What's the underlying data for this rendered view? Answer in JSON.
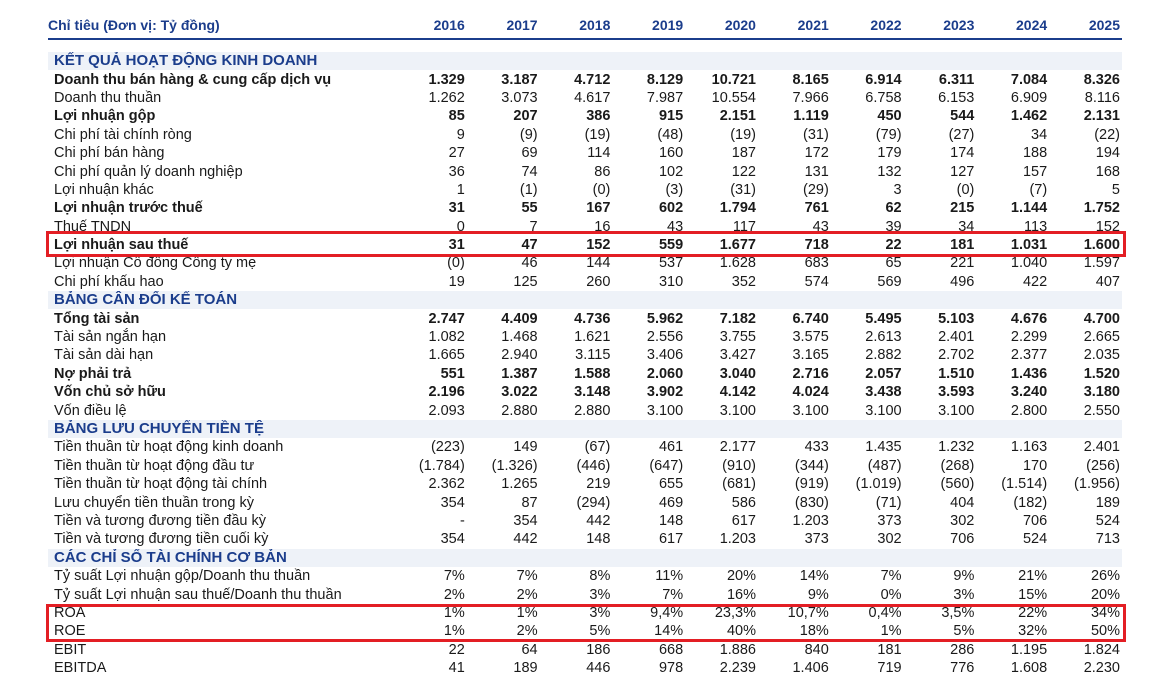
{
  "header": {
    "label": "Chỉ tiêu (Đơn vị: Tỷ đồng)",
    "years": [
      "2016",
      "2017",
      "2018",
      "2019",
      "2020",
      "2021",
      "2022",
      "2023",
      "2024",
      "2025"
    ]
  },
  "rows": [
    {
      "type": "section",
      "label": "KẾT QUẢ HOẠT ĐỘNG KINH DOANH"
    },
    {
      "type": "bold",
      "label": "Doanh thu bán hàng & cung cấp dịch vụ",
      "values": [
        "1.329",
        "3.187",
        "4.712",
        "8.129",
        "10.721",
        "8.165",
        "6.914",
        "6.311",
        "7.084",
        "8.326"
      ]
    },
    {
      "type": "normal",
      "label": "Doanh thu thuần",
      "values": [
        "1.262",
        "3.073",
        "4.617",
        "7.987",
        "10.554",
        "7.966",
        "6.758",
        "6.153",
        "6.909",
        "8.116"
      ]
    },
    {
      "type": "bold",
      "label": "Lợi nhuận gộp",
      "values": [
        "85",
        "207",
        "386",
        "915",
        "2.151",
        "1.119",
        "450",
        "544",
        "1.462",
        "2.131"
      ]
    },
    {
      "type": "normal",
      "label": "Chi phí tài chính ròng",
      "values": [
        "9",
        "(9)",
        "(19)",
        "(48)",
        "(19)",
        "(31)",
        "(79)",
        "(27)",
        "34",
        "(22)"
      ]
    },
    {
      "type": "normal",
      "label": "Chi phí bán hàng",
      "values": [
        "27",
        "69",
        "114",
        "160",
        "187",
        "172",
        "179",
        "174",
        "188",
        "194"
      ]
    },
    {
      "type": "normal",
      "label": "Chi phí quản lý doanh nghiệp",
      "values": [
        "36",
        "74",
        "86",
        "102",
        "122",
        "131",
        "132",
        "127",
        "157",
        "168"
      ]
    },
    {
      "type": "normal",
      "label": "Lợi nhuận khác",
      "values": [
        "1",
        "(1)",
        "(0)",
        "(3)",
        "(31)",
        "(29)",
        "3",
        "(0)",
        "(7)",
        "5"
      ]
    },
    {
      "type": "bold",
      "label": "Lợi nhuận trước thuế",
      "values": [
        "31",
        "55",
        "167",
        "602",
        "1.794",
        "761",
        "62",
        "215",
        "1.144",
        "1.752"
      ]
    },
    {
      "type": "normal",
      "label": "Thuế TNDN",
      "values": [
        "0",
        "7",
        "16",
        "43",
        "117",
        "43",
        "39",
        "34",
        "113",
        "152"
      ]
    },
    {
      "type": "bold",
      "label": "Lợi nhuận sau thuế",
      "values": [
        "31",
        "47",
        "152",
        "559",
        "1.677",
        "718",
        "22",
        "181",
        "1.031",
        "1.600"
      ]
    },
    {
      "type": "normal",
      "label": "Lợi nhuận Cổ đông Công ty mẹ",
      "values": [
        "(0)",
        "46",
        "144",
        "537",
        "1.628",
        "683",
        "65",
        "221",
        "1.040",
        "1.597"
      ]
    },
    {
      "type": "normal",
      "label": "Chi phí khấu hao",
      "values": [
        "19",
        "125",
        "260",
        "310",
        "352",
        "574",
        "569",
        "496",
        "422",
        "407"
      ]
    },
    {
      "type": "section",
      "label": "BẢNG CÂN ĐỐI KẾ TOÁN"
    },
    {
      "type": "bold",
      "label": "Tổng tài sản",
      "values": [
        "2.747",
        "4.409",
        "4.736",
        "5.962",
        "7.182",
        "6.740",
        "5.495",
        "5.103",
        "4.676",
        "4.700"
      ]
    },
    {
      "type": "normal",
      "label": "Tài sản ngắn hạn",
      "values": [
        "1.082",
        "1.468",
        "1.621",
        "2.556",
        "3.755",
        "3.575",
        "2.613",
        "2.401",
        "2.299",
        "2.665"
      ]
    },
    {
      "type": "normal",
      "label": "Tài sản dài hạn",
      "values": [
        "1.665",
        "2.940",
        "3.115",
        "3.406",
        "3.427",
        "3.165",
        "2.882",
        "2.702",
        "2.377",
        "2.035"
      ]
    },
    {
      "type": "bold",
      "label": "Nợ phải trả",
      "values": [
        "551",
        "1.387",
        "1.588",
        "2.060",
        "3.040",
        "2.716",
        "2.057",
        "1.510",
        "1.436",
        "1.520"
      ]
    },
    {
      "type": "bold",
      "label": "Vốn chủ sở hữu",
      "values": [
        "2.196",
        "3.022",
        "3.148",
        "3.902",
        "4.142",
        "4.024",
        "3.438",
        "3.593",
        "3.240",
        "3.180"
      ]
    },
    {
      "type": "normal",
      "label": "Vốn điều lệ",
      "values": [
        "2.093",
        "2.880",
        "2.880",
        "3.100",
        "3.100",
        "3.100",
        "3.100",
        "3.100",
        "2.800",
        "2.550"
      ]
    },
    {
      "type": "section",
      "label": "BẢNG LƯU CHUYỂN TIỀN TỆ"
    },
    {
      "type": "normal",
      "label": "Tiền thuần từ hoạt động kinh doanh",
      "values": [
        "(223)",
        "149",
        "(67)",
        "461",
        "2.177",
        "433",
        "1.435",
        "1.232",
        "1.163",
        "2.401"
      ]
    },
    {
      "type": "normal",
      "label": "Tiền thuần từ hoạt động đầu tư",
      "values": [
        "(1.784)",
        "(1.326)",
        "(446)",
        "(647)",
        "(910)",
        "(344)",
        "(487)",
        "(268)",
        "170",
        "(256)"
      ]
    },
    {
      "type": "normal",
      "label": "Tiền thuần từ hoạt động tài chính",
      "values": [
        "2.362",
        "1.265",
        "219",
        "655",
        "(681)",
        "(919)",
        "(1.019)",
        "(560)",
        "(1.514)",
        "(1.956)"
      ]
    },
    {
      "type": "normal",
      "label": "Lưu chuyển tiền thuần trong kỳ",
      "values": [
        "354",
        "87",
        "(294)",
        "469",
        "586",
        "(830)",
        "(71)",
        "404",
        "(182)",
        "189"
      ]
    },
    {
      "type": "normal",
      "label": "Tiền và tương đương tiền đầu kỳ",
      "values": [
        "-",
        "354",
        "442",
        "148",
        "617",
        "1.203",
        "373",
        "302",
        "706",
        "524"
      ]
    },
    {
      "type": "normal",
      "label": "Tiền và tương đương tiền cuối kỳ",
      "values": [
        "354",
        "442",
        "148",
        "617",
        "1.203",
        "373",
        "302",
        "706",
        "524",
        "713"
      ]
    },
    {
      "type": "section",
      "label": "CÁC CHỈ SỐ TÀI CHÍNH CƠ BẢN"
    },
    {
      "type": "normal",
      "label": "Tỷ suất Lợi nhuận gộp/Doanh thu thuần",
      "values": [
        "7%",
        "7%",
        "8%",
        "11%",
        "20%",
        "14%",
        "7%",
        "9%",
        "21%",
        "26%"
      ]
    },
    {
      "type": "normal",
      "label": "Tỷ suất Lợi nhuận sau thuế/Doanh thu thuần",
      "values": [
        "2%",
        "2%",
        "3%",
        "7%",
        "16%",
        "9%",
        "0%",
        "3%",
        "15%",
        "20%"
      ]
    },
    {
      "type": "normal",
      "label": "ROA",
      "values": [
        "1%",
        "1%",
        "3%",
        "9,4%",
        "23,3%",
        "10,7%",
        "0,4%",
        "3,5%",
        "22%",
        "34%"
      ]
    },
    {
      "type": "normal",
      "label": "ROE",
      "values": [
        "1%",
        "2%",
        "5%",
        "14%",
        "40%",
        "18%",
        "1%",
        "5%",
        "32%",
        "50%"
      ]
    },
    {
      "type": "normal",
      "label": "EBIT",
      "values": [
        "22",
        "64",
        "186",
        "668",
        "1.886",
        "840",
        "181",
        "286",
        "1.195",
        "1.824"
      ]
    },
    {
      "type": "normal",
      "label": "EBITDA",
      "values": [
        "41",
        "189",
        "446",
        "978",
        "2.239",
        "1.406",
        "719",
        "776",
        "1.608",
        "2.230"
      ]
    }
  ],
  "highlight_color": "#e31e24",
  "accent_color": "#1b3d8c"
}
